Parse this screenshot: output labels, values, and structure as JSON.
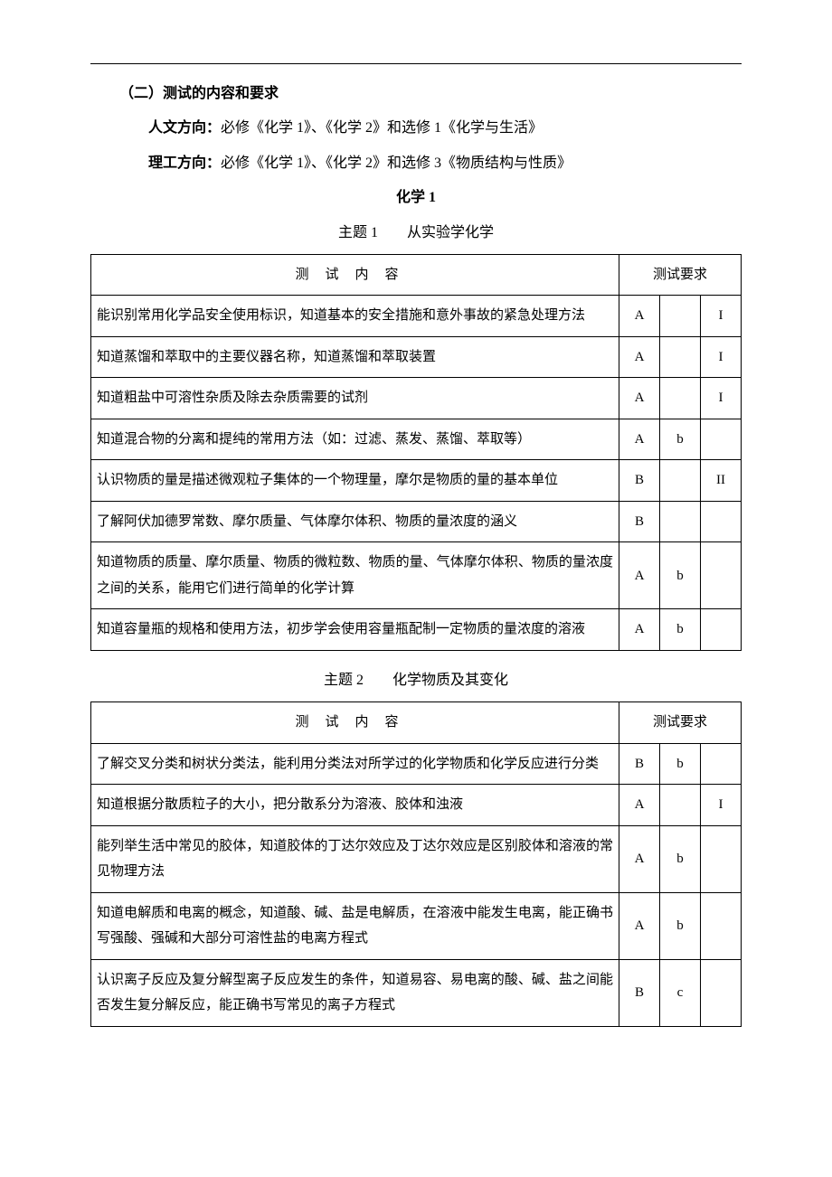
{
  "heading_section": "（二）测试的内容和要求",
  "para_humanities_label": "人文方向：",
  "para_humanities_text": "必修《化学 1》、《化学 2》和选修 1《化学与生活》",
  "para_science_label": "理工方向：",
  "para_science_text": "必修《化学 1》、《化学 2》和选修 3《物质结构与性质》",
  "chem_title": "化学 1",
  "topic1_title": "主题 1　　从实验学化学",
  "topic2_title": "主题 2　　化学物质及其变化",
  "th_content": "测试内容",
  "th_requirement": "测试要求",
  "table1": {
    "rows": [
      {
        "content": "能识别常用化学品安全使用标识，知道基本的安全措施和意外事故的紧急处理方法",
        "c1": "A",
        "c2": "",
        "c3": "I"
      },
      {
        "content": "知道蒸馏和萃取中的主要仪器名称，知道蒸馏和萃取装置",
        "c1": "A",
        "c2": "",
        "c3": "I"
      },
      {
        "content": "知道粗盐中可溶性杂质及除去杂质需要的试剂",
        "c1": "A",
        "c2": "",
        "c3": "I"
      },
      {
        "content": "知道混合物的分离和提纯的常用方法（如：过滤、蒸发、蒸馏、萃取等）",
        "c1": "A",
        "c2": "b",
        "c3": ""
      },
      {
        "content": "认识物质的量是描述微观粒子集体的一个物理量，摩尔是物质的量的基本单位",
        "c1": "B",
        "c2": "",
        "c3": "II"
      },
      {
        "content": "了解阿伏加德罗常数、摩尔质量、气体摩尔体积、物质的量浓度的涵义",
        "c1": "B",
        "c2": "",
        "c3": ""
      },
      {
        "content": "知道物质的质量、摩尔质量、物质的微粒数、物质的量、气体摩尔体积、物质的量浓度之间的关系，能用它们进行简单的化学计算",
        "c1": "A",
        "c2": "b",
        "c3": ""
      },
      {
        "content": "知道容量瓶的规格和使用方法，初步学会使用容量瓶配制一定物质的量浓度的溶液",
        "c1": "A",
        "c2": "b",
        "c3": ""
      }
    ]
  },
  "table2": {
    "rows": [
      {
        "content": "了解交叉分类和树状分类法，能利用分类法对所学过的化学物质和化学反应进行分类",
        "c1": "B",
        "c2": "b",
        "c3": ""
      },
      {
        "content": "知道根据分散质粒子的大小，把分散系分为溶液、胶体和浊液",
        "c1": "A",
        "c2": "",
        "c3": "I"
      },
      {
        "content": "能列举生活中常见的胶体，知道胶体的丁达尔效应及丁达尔效应是区别胶体和溶液的常见物理方法",
        "c1": "A",
        "c2": "b",
        "c3": ""
      },
      {
        "content": "知道电解质和电离的概念，知道酸、碱、盐是电解质，在溶液中能发生电离，能正确书写强酸、强碱和大部分可溶性盐的电离方程式",
        "c1": "A",
        "c2": "b",
        "c3": ""
      },
      {
        "content": "认识离子反应及复分解型离子反应发生的条件，知道易容、易电离的酸、碱、盐之间能否发生复分解反应，能正确书写常见的离子方程式",
        "c1": "B",
        "c2": "c",
        "c3": ""
      }
    ]
  }
}
